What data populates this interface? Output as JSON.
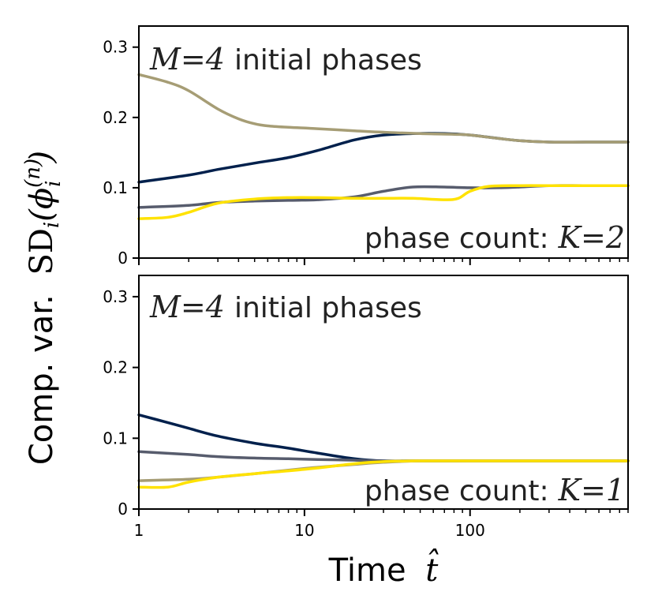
{
  "chart_data": [
    {
      "type": "line",
      "panel": "top",
      "annotation_top": {
        "math": "M=4",
        "text": "initial phases"
      },
      "annotation_bottom": {
        "text": "phase count:",
        "math": "K=2"
      },
      "xscale": "log",
      "xlim": [
        1,
        900
      ],
      "ylim": [
        0,
        0.33
      ],
      "yticks": [
        0,
        0.1,
        0.2,
        0.3
      ],
      "ytick_labels": [
        "0",
        "0.1",
        "0.2",
        "0.3"
      ],
      "grid": false,
      "series": [
        {
          "color": "#00204c",
          "x": [
            1,
            2,
            3,
            5,
            8,
            12,
            20,
            30,
            45,
            70,
            100,
            150,
            200,
            300,
            500,
            900
          ],
          "y": [
            0.108,
            0.118,
            0.126,
            0.135,
            0.143,
            0.153,
            0.168,
            0.175,
            0.177,
            0.177,
            0.175,
            0.17,
            0.167,
            0.165,
            0.165,
            0.165
          ]
        },
        {
          "color": "#575c6d",
          "x": [
            1,
            2,
            3,
            5,
            8,
            12,
            20,
            30,
            45,
            70,
            100,
            150,
            200,
            300,
            500,
            900
          ],
          "y": [
            0.072,
            0.075,
            0.079,
            0.081,
            0.082,
            0.083,
            0.087,
            0.095,
            0.101,
            0.101,
            0.1,
            0.1,
            0.101,
            0.103,
            0.103,
            0.103
          ]
        },
        {
          "color": "#ffe200",
          "x": [
            1,
            1.5,
            2,
            3,
            5,
            8,
            12,
            20,
            30,
            45,
            70,
            85,
            100,
            130,
            200,
            300,
            500,
            900
          ],
          "y": [
            0.056,
            0.058,
            0.065,
            0.078,
            0.084,
            0.086,
            0.086,
            0.085,
            0.085,
            0.085,
            0.083,
            0.085,
            0.095,
            0.102,
            0.103,
            0.103,
            0.103,
            0.103
          ]
        },
        {
          "color": "#a69d75",
          "x": [
            1,
            1.5,
            2,
            3,
            4,
            5,
            6,
            8,
            12,
            20,
            30,
            50,
            80,
            100,
            150,
            200,
            300,
            500,
            900
          ],
          "y": [
            0.261,
            0.25,
            0.238,
            0.212,
            0.198,
            0.191,
            0.188,
            0.186,
            0.184,
            0.181,
            0.179,
            0.177,
            0.176,
            0.175,
            0.17,
            0.167,
            0.165,
            0.165,
            0.165
          ]
        }
      ]
    },
    {
      "type": "line",
      "panel": "bottom",
      "annotation_top": {
        "math": "M=4",
        "text": "initial phases"
      },
      "annotation_bottom": {
        "text": "phase count:",
        "math": "K=1"
      },
      "xscale": "log",
      "xlim": [
        1,
        900
      ],
      "ylim": [
        0,
        0.33
      ],
      "yticks": [
        0,
        0.1,
        0.2,
        0.3
      ],
      "ytick_labels": [
        "0",
        "0.1",
        "0.2",
        "0.3"
      ],
      "xticks": [
        1,
        10,
        100
      ],
      "xtick_labels": [
        "1",
        "10",
        "100"
      ],
      "xlabel": {
        "text": "Time",
        "math": "t̂"
      },
      "grid": false,
      "series": [
        {
          "color": "#00204c",
          "x": [
            1,
            1.5,
            2,
            3,
            5,
            8,
            12,
            20,
            30,
            50,
            100,
            200,
            500,
            900
          ],
          "y": [
            0.133,
            0.122,
            0.114,
            0.103,
            0.093,
            0.086,
            0.079,
            0.071,
            0.068,
            0.068,
            0.068,
            0.068,
            0.068,
            0.068
          ]
        },
        {
          "color": "#575c6d",
          "x": [
            1,
            2,
            3,
            5,
            8,
            12,
            20,
            30,
            50,
            100,
            200,
            500,
            900
          ],
          "y": [
            0.081,
            0.077,
            0.074,
            0.072,
            0.071,
            0.07,
            0.069,
            0.068,
            0.068,
            0.068,
            0.068,
            0.068,
            0.068
          ]
        },
        {
          "color": "#a69d75",
          "x": [
            1,
            2,
            3,
            5,
            8,
            12,
            20,
            30,
            50,
            100,
            200,
            500,
            900
          ],
          "y": [
            0.04,
            0.042,
            0.045,
            0.05,
            0.055,
            0.059,
            0.063,
            0.066,
            0.068,
            0.068,
            0.068,
            0.068,
            0.068
          ]
        },
        {
          "color": "#ffe200",
          "x": [
            1,
            1.5,
            2,
            3,
            5,
            8,
            12,
            20,
            30,
            50,
            100,
            200,
            500,
            900
          ],
          "y": [
            0.031,
            0.031,
            0.038,
            0.045,
            0.05,
            0.054,
            0.058,
            0.064,
            0.067,
            0.068,
            0.068,
            0.068,
            0.068,
            0.068
          ]
        }
      ]
    }
  ],
  "shared_ylabel": {
    "text": "Comp. var.",
    "math_fn": "SD",
    "math_sub": "i",
    "math_arg": "(ϕ",
    "math_arg_sup": "(n)",
    "math_arg_sub": "i",
    "math_close": ")"
  }
}
